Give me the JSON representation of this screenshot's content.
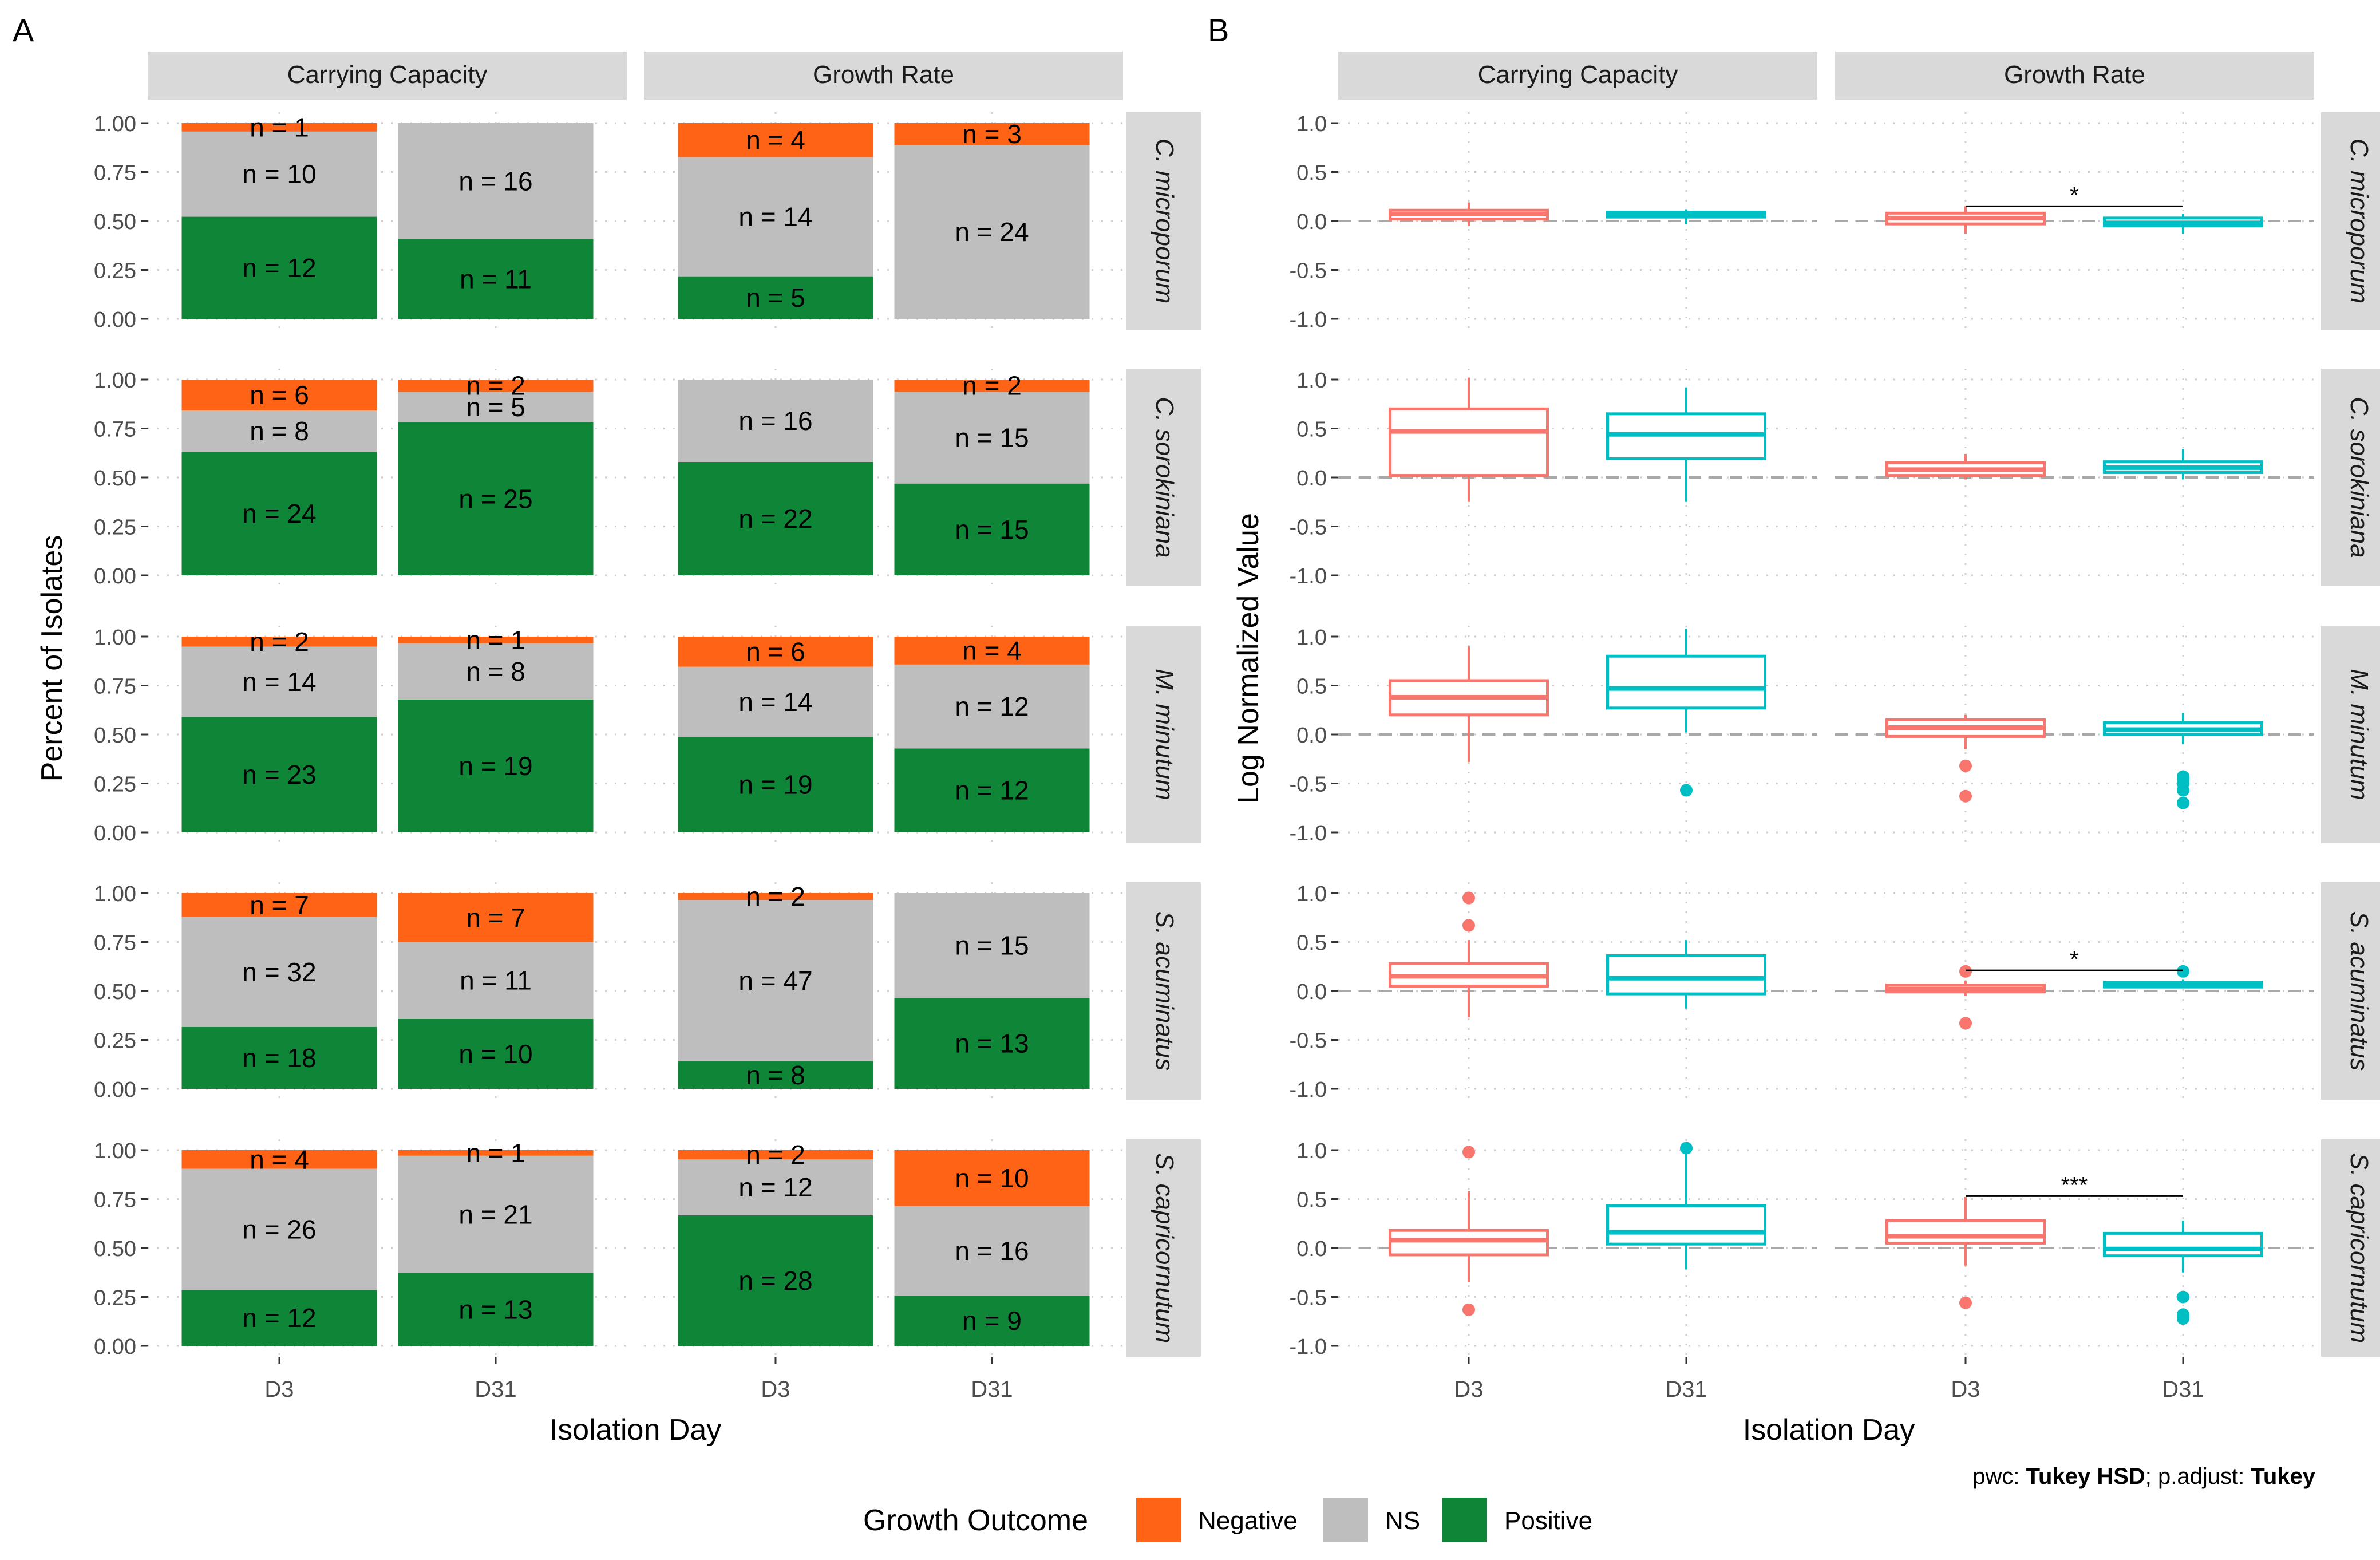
{
  "colors": {
    "negative": "#FF6315",
    "ns": "#BEBEBE",
    "positive": "#0F8537",
    "d3": "#F8766D",
    "d31": "#00BFC4",
    "strip": "#D9D9D9",
    "grid": "#CFCFCF",
    "text": "#000000",
    "axis_text": "#4D4D4D"
  },
  "panel_labels": [
    "A",
    "B"
  ],
  "legend": {
    "title": "Growth Outcome",
    "items": [
      {
        "label": "Negative",
        "color_key": "negative"
      },
      {
        "label": "NS",
        "color_key": "ns"
      },
      {
        "label": "Positive",
        "color_key": "positive"
      }
    ]
  },
  "footnote": {
    "parts": [
      {
        "text": "pwc: ",
        "bold": false
      },
      {
        "text": "Tukey HSD",
        "bold": true
      },
      {
        "text": "; p.adjust: ",
        "bold": false
      },
      {
        "text": "Tukey",
        "bold": true
      }
    ]
  },
  "chart_data": [
    {
      "panel": "A",
      "type": "bar",
      "stacked": true,
      "xlabel": "Isolation Day",
      "ylabel": "Percent of Isolates",
      "ylim": [
        0,
        1
      ],
      "yticks": [
        "0.00",
        "0.25",
        "0.50",
        "0.75",
        "1.00"
      ],
      "categories": [
        "D3",
        "D31"
      ],
      "facet_columns": [
        "Carrying Capacity",
        "Growth Rate"
      ],
      "facet_rows": [
        "C. microporum",
        "C. sorokiniana",
        "M. minutum",
        "S. acuminatus",
        "S. capricornutum"
      ],
      "stack_order": [
        "Positive",
        "NS",
        "Negative"
      ],
      "panels": [
        {
          "row": "C. microporum",
          "col": "Carrying Capacity",
          "bars": [
            {
              "day": "D3",
              "counts": {
                "Positive": 12,
                "NS": 10,
                "Negative": 1
              },
              "labels": [
                "n = 12",
                "n = 10",
                "n = 1"
              ]
            },
            {
              "day": "D31",
              "counts": {
                "Positive": 11,
                "NS": 16,
                "Negative": 0
              },
              "labels": [
                "n = 11",
                "n = 16"
              ]
            }
          ]
        },
        {
          "row": "C. microporum",
          "col": "Growth Rate",
          "bars": [
            {
              "day": "D3",
              "counts": {
                "Positive": 5,
                "NS": 14,
                "Negative": 4
              },
              "labels": [
                "n = 5",
                "n = 14",
                "n = 4"
              ]
            },
            {
              "day": "D31",
              "counts": {
                "Positive": 0,
                "NS": 24,
                "Negative": 3
              },
              "labels": [
                "n = 24",
                "n = 3"
              ]
            }
          ]
        },
        {
          "row": "C. sorokiniana",
          "col": "Carrying Capacity",
          "bars": [
            {
              "day": "D3",
              "counts": {
                "Positive": 24,
                "NS": 8,
                "Negative": 6
              },
              "labels": [
                "n = 24",
                "n = 8",
                "n = 6"
              ]
            },
            {
              "day": "D31",
              "counts": {
                "Positive": 25,
                "NS": 5,
                "Negative": 2
              },
              "labels": [
                "n = 25",
                "n = 5",
                "n = 2"
              ]
            }
          ]
        },
        {
          "row": "C. sorokiniana",
          "col": "Growth Rate",
          "bars": [
            {
              "day": "D3",
              "counts": {
                "Positive": 22,
                "NS": 16,
                "Negative": 0
              },
              "labels": [
                "n = 22",
                "n = 16"
              ]
            },
            {
              "day": "D31",
              "counts": {
                "Positive": 15,
                "NS": 15,
                "Negative": 2
              },
              "labels": [
                "n = 15",
                "n = 15",
                "n = 2"
              ]
            }
          ]
        },
        {
          "row": "M. minutum",
          "col": "Carrying Capacity",
          "bars": [
            {
              "day": "D3",
              "counts": {
                "Positive": 23,
                "NS": 14,
                "Negative": 2
              },
              "labels": [
                "n = 23",
                "n = 14",
                "n = 2"
              ]
            },
            {
              "day": "D31",
              "counts": {
                "Positive": 19,
                "NS": 8,
                "Negative": 1
              },
              "labels": [
                "n = 19",
                "n = 8",
                "n = 1"
              ]
            }
          ]
        },
        {
          "row": "M. minutum",
          "col": "Growth Rate",
          "bars": [
            {
              "day": "D3",
              "counts": {
                "Positive": 19,
                "NS": 14,
                "Negative": 6
              },
              "labels": [
                "n = 19",
                "n = 14",
                "n = 6"
              ]
            },
            {
              "day": "D31",
              "counts": {
                "Positive": 12,
                "NS": 12,
                "Negative": 4
              },
              "labels": [
                "n = 12",
                "n = 12",
                "n = 4"
              ]
            }
          ]
        },
        {
          "row": "S. acuminatus",
          "col": "Carrying Capacity",
          "bars": [
            {
              "day": "D3",
              "counts": {
                "Positive": 18,
                "NS": 32,
                "Negative": 7
              },
              "labels": [
                "n = 18",
                "n = 32",
                "n = 7"
              ]
            },
            {
              "day": "D31",
              "counts": {
                "Positive": 10,
                "NS": 11,
                "Negative": 7
              },
              "labels": [
                "n = 10",
                "n = 11",
                "n = 7"
              ]
            }
          ]
        },
        {
          "row": "S. acuminatus",
          "col": "Growth Rate",
          "bars": [
            {
              "day": "D3",
              "counts": {
                "Positive": 8,
                "NS": 47,
                "Negative": 2
              },
              "labels": [
                "n = 8",
                "n = 47",
                "n = 2"
              ]
            },
            {
              "day": "D31",
              "counts": {
                "Positive": 13,
                "NS": 15,
                "Negative": 0
              },
              "labels": [
                "n = 13",
                "n = 15"
              ]
            }
          ]
        },
        {
          "row": "S. capricornutum",
          "col": "Carrying Capacity",
          "bars": [
            {
              "day": "D3",
              "counts": {
                "Positive": 12,
                "NS": 26,
                "Negative": 4
              },
              "labels": [
                "n = 12",
                "n = 26",
                "n = 4"
              ]
            },
            {
              "day": "D31",
              "counts": {
                "Positive": 13,
                "NS": 21,
                "Negative": 1
              },
              "labels": [
                "n = 13",
                "n = 21",
                "n = 1"
              ]
            }
          ]
        },
        {
          "row": "S. capricornutum",
          "col": "Growth Rate",
          "bars": [
            {
              "day": "D3",
              "counts": {
                "Positive": 28,
                "NS": 12,
                "Negative": 2
              },
              "labels": [
                "n = 28",
                "n = 12",
                "n = 2"
              ]
            },
            {
              "day": "D31",
              "counts": {
                "Positive": 9,
                "NS": 16,
                "Negative": 10
              },
              "labels": [
                "n = 9",
                "n = 16",
                "n = 10"
              ]
            }
          ]
        }
      ]
    },
    {
      "panel": "B",
      "type": "box",
      "xlabel": "Isolation Day",
      "ylabel": "Log Normalized Value",
      "ylim": [
        -1.0,
        1.0
      ],
      "yticks": [
        "1.0",
        "0.5",
        "0.0",
        "-0.5",
        "-1.0"
      ],
      "categories": [
        "D3",
        "D31"
      ],
      "facet_columns": [
        "Carrying Capacity",
        "Growth Rate"
      ],
      "facet_rows": [
        "C. microporum",
        "C. sorokiniana",
        "M. minutum",
        "S. acuminatus",
        "S. capricornutum"
      ],
      "reference_line": 0.0,
      "panels": [
        {
          "row": "C. microporum",
          "col": "Carrying Capacity",
          "boxes": [
            {
              "day": "D3",
              "min": -0.05,
              "q1": 0.02,
              "median": 0.07,
              "q3": 0.11,
              "max": 0.19,
              "outliers": []
            },
            {
              "day": "D31",
              "min": -0.03,
              "q1": 0.04,
              "median": 0.07,
              "q3": 0.09,
              "max": 0.12,
              "outliers": []
            }
          ],
          "sig": null
        },
        {
          "row": "C. microporum",
          "col": "Growth Rate",
          "boxes": [
            {
              "day": "D3",
              "min": -0.13,
              "q1": -0.03,
              "median": 0.03,
              "q3": 0.08,
              "max": 0.15,
              "outliers": []
            },
            {
              "day": "D31",
              "min": -0.13,
              "q1": -0.05,
              "median": -0.02,
              "q3": 0.03,
              "max": 0.07,
              "outliers": []
            }
          ],
          "sig": {
            "label": "*",
            "y": 0.15
          }
        },
        {
          "row": "C. sorokiniana",
          "col": "Carrying Capacity",
          "boxes": [
            {
              "day": "D3",
              "min": -0.25,
              "q1": 0.02,
              "median": 0.47,
              "q3": 0.7,
              "max": 1.02,
              "outliers": []
            },
            {
              "day": "D31",
              "min": -0.25,
              "q1": 0.19,
              "median": 0.44,
              "q3": 0.65,
              "max": 0.92,
              "outliers": []
            }
          ],
          "sig": null
        },
        {
          "row": "C. sorokiniana",
          "col": "Growth Rate",
          "boxes": [
            {
              "day": "D3",
              "min": -0.02,
              "q1": 0.02,
              "median": 0.08,
              "q3": 0.15,
              "max": 0.24,
              "outliers": []
            },
            {
              "day": "D31",
              "min": -0.02,
              "q1": 0.05,
              "median": 0.1,
              "q3": 0.16,
              "max": 0.29,
              "outliers": []
            }
          ],
          "sig": null
        },
        {
          "row": "M. minutum",
          "col": "Carrying Capacity",
          "boxes": [
            {
              "day": "D3",
              "min": -0.28,
              "q1": 0.2,
              "median": 0.38,
              "q3": 0.55,
              "max": 0.9,
              "outliers": []
            },
            {
              "day": "D31",
              "min": 0.02,
              "q1": 0.27,
              "median": 0.47,
              "q3": 0.8,
              "max": 1.08,
              "outliers": [
                -0.57
              ]
            }
          ],
          "sig": null
        },
        {
          "row": "M. minutum",
          "col": "Growth Rate",
          "boxes": [
            {
              "day": "D3",
              "min": -0.15,
              "q1": -0.02,
              "median": 0.07,
              "q3": 0.15,
              "max": 0.2,
              "outliers": [
                -0.32,
                -0.63
              ]
            },
            {
              "day": "D31",
              "min": -0.1,
              "q1": 0.0,
              "median": 0.05,
              "q3": 0.12,
              "max": 0.22,
              "outliers": [
                -0.43,
                -0.46,
                -0.5,
                -0.57,
                -0.7
              ]
            }
          ],
          "sig": null
        },
        {
          "row": "S. acuminatus",
          "col": "Carrying Capacity",
          "boxes": [
            {
              "day": "D3",
              "min": -0.27,
              "q1": 0.05,
              "median": 0.15,
              "q3": 0.28,
              "max": 0.52,
              "outliers": [
                0.95,
                0.67
              ]
            },
            {
              "day": "D31",
              "min": -0.18,
              "q1": -0.03,
              "median": 0.13,
              "q3": 0.36,
              "max": 0.52,
              "outliers": []
            }
          ],
          "sig": null
        },
        {
          "row": "S. acuminatus",
          "col": "Growth Rate",
          "boxes": [
            {
              "day": "D3",
              "min": -0.05,
              "q1": -0.01,
              "median": 0.02,
              "q3": 0.06,
              "max": 0.1,
              "outliers": [
                0.2,
                -0.33
              ]
            },
            {
              "day": "D31",
              "min": 0.03,
              "q1": 0.04,
              "median": 0.07,
              "q3": 0.09,
              "max": 0.12,
              "outliers": [
                0.2
              ]
            }
          ],
          "sig": {
            "label": "*",
            "y": 0.21
          }
        },
        {
          "row": "S. capricornutum",
          "col": "Carrying Capacity",
          "boxes": [
            {
              "day": "D3",
              "min": -0.35,
              "q1": -0.07,
              "median": 0.08,
              "q3": 0.18,
              "max": 0.58,
              "outliers": [
                0.98,
                -0.63
              ]
            },
            {
              "day": "D31",
              "min": -0.22,
              "q1": 0.04,
              "median": 0.16,
              "q3": 0.43,
              "max": 0.97,
              "outliers": [
                1.02
              ]
            }
          ],
          "sig": null
        },
        {
          "row": "S. capricornutum",
          "col": "Growth Rate",
          "boxes": [
            {
              "day": "D3",
              "min": -0.18,
              "q1": 0.05,
              "median": 0.12,
              "q3": 0.28,
              "max": 0.52,
              "outliers": [
                -0.56
              ]
            },
            {
              "day": "D31",
              "min": -0.25,
              "q1": -0.08,
              "median": -0.01,
              "q3": 0.15,
              "max": 0.28,
              "outliers": [
                -0.5,
                -0.68,
                -0.72
              ]
            }
          ],
          "sig": {
            "label": "***",
            "y": 0.53
          }
        }
      ]
    }
  ]
}
